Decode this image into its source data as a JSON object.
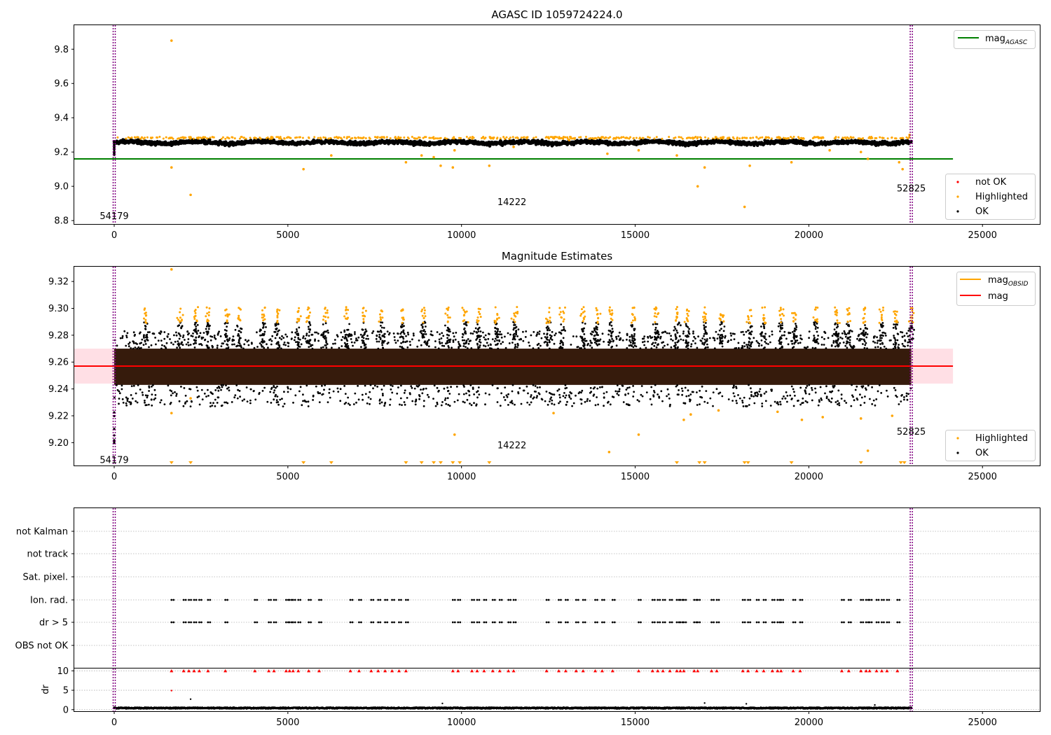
{
  "chart_data": [
    {
      "type": "scatter",
      "title": "AGASC ID 1059724224.0",
      "xlim": [
        -1150,
        26650
      ],
      "ylim": [
        8.78,
        9.94
      ],
      "x_ticks": [
        0,
        5000,
        10000,
        15000,
        20000,
        25000
      ],
      "y_ticks": [
        8.8,
        9.0,
        9.2,
        9.4,
        9.6,
        9.8
      ],
      "y_tick_labels": [
        "8.8",
        "9.0",
        "9.2",
        "9.4",
        "9.6",
        "9.8"
      ],
      "grid": false,
      "legend": "top-right",
      "legend_extra_position": "bottom-right",
      "hlines": [
        {
          "name": "mag",
          "subscript": "AGASC",
          "y": 9.16,
          "x_end": 24150,
          "color": "#008000"
        }
      ],
      "vlines": [
        {
          "x": 0
        },
        {
          "x": 22950
        }
      ],
      "annotations": [
        {
          "text": "54179",
          "x": 0,
          "y": 8.83
        },
        {
          "text": "14222",
          "x": 11450,
          "y": 8.91
        },
        {
          "text": "52825",
          "x": 22950,
          "y": 8.99
        }
      ],
      "ok_band": {
        "center": 9.255,
        "amplitude": 0.012,
        "x_start": 0,
        "x_end": 22950
      },
      "highlighted_points": [
        [
          1650,
          9.85
        ],
        [
          1650,
          9.11
        ],
        [
          2200,
          8.95
        ],
        [
          5450,
          9.1
        ],
        [
          6250,
          9.18
        ],
        [
          8400,
          9.14
        ],
        [
          8850,
          9.18
        ],
        [
          9200,
          9.17
        ],
        [
          9400,
          9.12
        ],
        [
          9750,
          9.11
        ],
        [
          9800,
          9.21
        ],
        [
          10800,
          9.12
        ],
        [
          11500,
          9.23
        ],
        [
          13100,
          9.27
        ],
        [
          14200,
          9.19
        ],
        [
          15100,
          9.21
        ],
        [
          16200,
          9.18
        ],
        [
          16800,
          9.0
        ],
        [
          17000,
          9.11
        ],
        [
          18150,
          8.88
        ],
        [
          18300,
          9.12
        ],
        [
          19500,
          9.14
        ],
        [
          20600,
          9.21
        ],
        [
          21500,
          9.2
        ],
        [
          21700,
          9.16
        ],
        [
          22600,
          9.14
        ],
        [
          22700,
          9.1
        ],
        [
          22900,
          9.3
        ]
      ],
      "not_ok_points": [],
      "legend_items": [
        {
          "label": "not OK",
          "color": "#ff0000"
        },
        {
          "label": "Highlighted",
          "color": "#ffa500"
        },
        {
          "label": "OK",
          "color": "#000000"
        }
      ],
      "colors": {
        "ok": "#000000",
        "highlighted": "#ffa500",
        "not_ok": "#ff0000",
        "vline": "#800080"
      }
    },
    {
      "type": "scatter",
      "title": "Magnitude Estimates",
      "xlim": [
        -1150,
        26650
      ],
      "ylim": [
        9.183,
        9.331
      ],
      "x_ticks": [
        0,
        5000,
        10000,
        15000,
        20000,
        25000
      ],
      "y_ticks": [
        9.2,
        9.22,
        9.24,
        9.26,
        9.28,
        9.3,
        9.32
      ],
      "y_tick_labels": [
        "9.20",
        "9.22",
        "9.24",
        "9.26",
        "9.28",
        "9.30",
        "9.32"
      ],
      "grid": false,
      "legend": "top-right",
      "legend_extra_position": "bottom-right",
      "hlines": [
        {
          "name": "mag",
          "subscript": "OBSID",
          "y": 9.257,
          "x_end": 22950,
          "color": "#ffa500"
        },
        {
          "name": "mag",
          "subscript": "",
          "y": 9.257,
          "x_end": 24150,
          "color": "#ff0000"
        }
      ],
      "error_band": {
        "low": 9.244,
        "high": 9.27,
        "x_end": 24150,
        "color": "#ffc0cb"
      },
      "vlines": [
        {
          "x": 0
        },
        {
          "x": 22950
        }
      ],
      "annotations": [
        {
          "text": "54179",
          "x": 0,
          "y": 9.1875
        },
        {
          "text": "14222",
          "x": 11450,
          "y": 9.1985
        },
        {
          "text": "52825",
          "x": 22950,
          "y": 9.2085
        }
      ],
      "core_band": {
        "low": 9.243,
        "high": 9.27
      },
      "spike_centers": [
        900,
        1900,
        2350,
        2700,
        3250,
        3600,
        4300,
        4700,
        5300,
        5600,
        6100,
        6700,
        7200,
        7700,
        8300,
        8900,
        9600,
        10100,
        10500,
        11000,
        11550,
        12500,
        12900,
        13500,
        13900,
        14300,
        14950,
        15600,
        16200,
        16500,
        17000,
        17500,
        18300,
        18700,
        19200,
        19600,
        20200,
        20800,
        21150,
        21600,
        22100,
        22500,
        22950
      ],
      "highlighted_points": [
        [
          1650,
          9.329
        ],
        [
          1650,
          9.222
        ],
        [
          2200,
          9.233
        ],
        [
          9800,
          9.206
        ],
        [
          12650,
          9.222
        ],
        [
          14250,
          9.193
        ],
        [
          15100,
          9.206
        ],
        [
          16400,
          9.217
        ],
        [
          16600,
          9.221
        ],
        [
          17400,
          9.224
        ],
        [
          19100,
          9.223
        ],
        [
          19800,
          9.217
        ],
        [
          20400,
          9.219
        ],
        [
          21500,
          9.218
        ],
        [
          21700,
          9.194
        ],
        [
          22400,
          9.22
        ]
      ],
      "below_range_x": [
        1650,
        2200,
        5450,
        6250,
        8400,
        8850,
        9200,
        9400,
        9750,
        9950,
        10800,
        16200,
        16850,
        17000,
        18150,
        18250,
        19500,
        21500,
        22650,
        22750
      ],
      "legend_items": [
        {
          "label": "Highlighted",
          "color": "#ffa500"
        },
        {
          "label": "OK",
          "color": "#000000"
        }
      ],
      "colors": {
        "ok": "#000000",
        "core": "#2b1000",
        "highlighted": "#ffa500",
        "vline": "#800080"
      }
    },
    {
      "type": "scatter",
      "title": "",
      "xlim": [
        -1150,
        26650
      ],
      "categories": [
        "not Kalman",
        "not track",
        "Sat. pixel.",
        "Ion. rad.",
        "dr > 5",
        "OBS not OK"
      ],
      "flag_rows": [
        {
          "label": "Ion. rad.",
          "x_clusters": [
            1650,
            2000,
            2150,
            2300,
            2450,
            2700,
            3200,
            4050,
            4450,
            4600,
            4950,
            5050,
            5150,
            5300,
            5600,
            5900,
            6800,
            7050,
            7400,
            7600,
            7800,
            8000,
            8200,
            8400,
            9750,
            9900,
            10300,
            10450,
            10650,
            10900,
            11100,
            11350,
            11500,
            12450,
            12800,
            13000,
            13300,
            13500,
            13850,
            14050,
            14350,
            15100,
            15500,
            15650,
            15800,
            16000,
            16200,
            16300,
            16400,
            16700,
            16800,
            17200,
            17350,
            18100,
            18250,
            18500,
            18700,
            18950,
            19100,
            19200,
            19550,
            19750,
            20950,
            21150,
            21500,
            21650,
            21750,
            21950,
            22100,
            22250,
            22550
          ]
        },
        {
          "label": "dr > 5",
          "x_clusters": [
            1650,
            2000,
            2150,
            2300,
            2450,
            2700,
            3200,
            4050,
            4450,
            4600,
            4950,
            5050,
            5150,
            5300,
            5600,
            5900,
            6800,
            7050,
            7400,
            7600,
            7800,
            8000,
            8200,
            8400,
            9750,
            9900,
            10300,
            10450,
            10650,
            10900,
            11100,
            11350,
            11500,
            12450,
            12800,
            13000,
            13300,
            13500,
            13850,
            14050,
            14350,
            15100,
            15500,
            15650,
            15800,
            16000,
            16200,
            16300,
            16400,
            16700,
            16800,
            17200,
            17350,
            18100,
            18250,
            18500,
            18700,
            18950,
            19100,
            19200,
            19550,
            19750,
            20950,
            21150,
            21500,
            21650,
            21750,
            21950,
            22100,
            22250,
            22550
          ]
        }
      ],
      "grid": "dotted",
      "vlines": [
        {
          "x": 0
        },
        {
          "x": 22950
        }
      ],
      "colors": {
        "flag": "#000000",
        "vline": "#800080",
        "grid": "#b0b0b0"
      }
    },
    {
      "type": "scatter",
      "title": "",
      "xlim": [
        -1150,
        26650
      ],
      "x_ticks": [
        0,
        5000,
        10000,
        15000,
        20000,
        25000
      ],
      "ylabel": "dr",
      "ylim": [
        -0.4,
        10.6
      ],
      "y_ticks": [
        0,
        5,
        10
      ],
      "y_tick_labels": [
        "0",
        "5",
        "10"
      ],
      "grid": "dotted",
      "baseline": {
        "center": 0.3,
        "amplitude": 0.25,
        "x_start": 0,
        "x_end": 22950
      },
      "outlier_points": [
        [
          2200,
          2.7
        ],
        [
          9450,
          1.6
        ],
        [
          17000,
          1.7
        ],
        [
          18200,
          1.5
        ],
        [
          21900,
          1.2
        ]
      ],
      "clipped_red_x": [
        1650,
        2000,
        2150,
        2300,
        2450,
        2700,
        3200,
        4050,
        4450,
        4600,
        4950,
        5050,
        5150,
        5300,
        5600,
        5900,
        6800,
        7050,
        7400,
        7600,
        7800,
        8000,
        8200,
        8400,
        9750,
        9900,
        10300,
        10450,
        10650,
        10900,
        11100,
        11350,
        11500,
        12450,
        12800,
        13000,
        13300,
        13500,
        13850,
        14050,
        14350,
        15100,
        15500,
        15650,
        15800,
        16000,
        16200,
        16300,
        16400,
        16700,
        16800,
        17200,
        17350,
        18100,
        18250,
        18500,
        18700,
        18950,
        19100,
        19200,
        19550,
        19750,
        20950,
        21150,
        21500,
        21650,
        21750,
        21950,
        22100,
        22250,
        22550
      ],
      "red_points": [
        [
          1650,
          4.9
        ]
      ],
      "colors": {
        "ok": "#000000",
        "red": "#ff0000",
        "vline": "#800080",
        "grid": "#b0b0b0"
      },
      "vlines": [
        {
          "x": 0
        },
        {
          "x": 22950
        }
      ]
    }
  ]
}
